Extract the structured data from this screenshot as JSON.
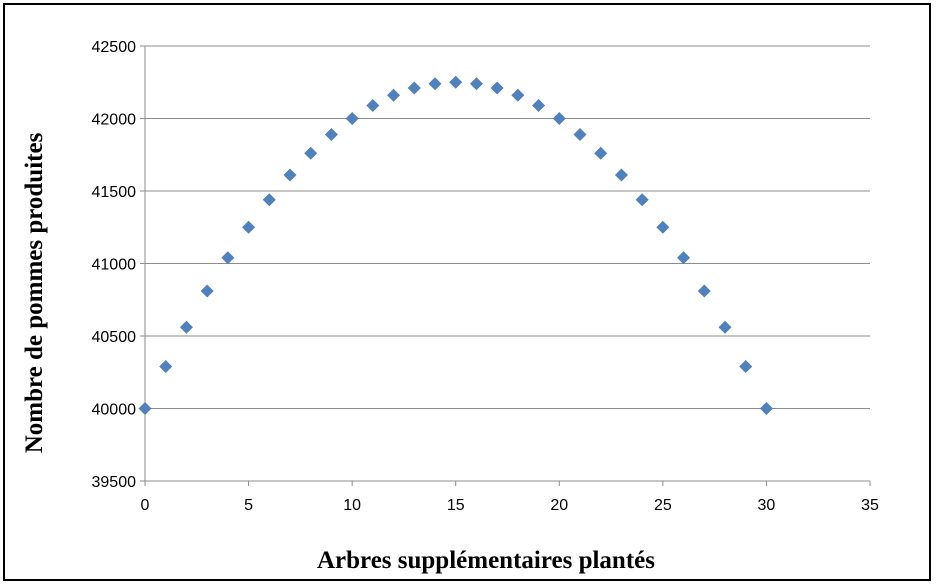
{
  "chart_data": {
    "type": "scatter",
    "title": "",
    "xlabel": "Arbres supplémentaires plantés",
    "ylabel": "Nombre de pommes produites",
    "xlim": [
      0,
      35
    ],
    "ylim": [
      39500,
      42500
    ],
    "x_ticks": [
      0,
      5,
      10,
      15,
      20,
      25,
      30,
      35
    ],
    "y_ticks": [
      39500,
      40000,
      40500,
      41000,
      41500,
      42000,
      42500
    ],
    "grid": "horizontal",
    "legend": "none",
    "marker": "diamond",
    "colors": {
      "marker": "#4f81bd",
      "grid": "#8c8c8c",
      "axis": "#8c8c8c"
    },
    "x": [
      0,
      1,
      2,
      3,
      4,
      5,
      6,
      7,
      8,
      9,
      10,
      11,
      12,
      13,
      14,
      15,
      16,
      17,
      18,
      19,
      20,
      21,
      22,
      23,
      24,
      25,
      26,
      27,
      28,
      29,
      30
    ],
    "y": [
      40000,
      40290,
      40560,
      40810,
      41040,
      41250,
      41440,
      41610,
      41760,
      41890,
      42000,
      42090,
      42160,
      42210,
      42240,
      42250,
      42240,
      42210,
      42160,
      42090,
      42000,
      41890,
      41760,
      41610,
      41440,
      41250,
      41040,
      40810,
      40560,
      40290,
      40000
    ]
  }
}
